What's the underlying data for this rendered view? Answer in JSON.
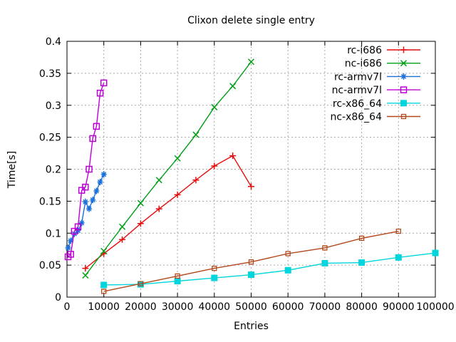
{
  "chart_data": {
    "type": "line",
    "title": "Clixon delete single entry",
    "xlabel": "Entries",
    "ylabel": "Time[s]",
    "xlim": [
      0,
      100000
    ],
    "ylim": [
      0,
      0.4
    ],
    "x_ticks": [
      0,
      10000,
      20000,
      30000,
      40000,
      50000,
      60000,
      70000,
      80000,
      90000,
      100000
    ],
    "x_tick_labels": [
      "0",
      "10000",
      "20000",
      "30000",
      "40000",
      "50000",
      "60000",
      "70000",
      "80000",
      "90000",
      "100000"
    ],
    "y_ticks": [
      0,
      0.05,
      0.1,
      0.15,
      0.2,
      0.25,
      0.3,
      0.35,
      0.4
    ],
    "y_tick_labels": [
      "0",
      "0.05",
      "0.1",
      "0.15",
      "0.2",
      "0.25",
      "0.3",
      "0.35",
      "0.4"
    ],
    "grid": true,
    "legend_position": "top-right-inside",
    "colors": {
      "background": "#ffffff",
      "axis": "#000000",
      "grid": "#a8a8a8",
      "text": "#000000"
    },
    "series": [
      {
        "name": "rc-i686",
        "color": "#e40d0d",
        "marker": "plus",
        "x": [
          5000,
          10000,
          15000,
          20000,
          25000,
          30000,
          35000,
          40000,
          45000,
          50000
        ],
        "y": [
          0.045,
          0.068,
          0.09,
          0.115,
          0.138,
          0.16,
          0.183,
          0.205,
          0.221,
          0.173
        ]
      },
      {
        "name": "nc-i686",
        "color": "#00a017",
        "marker": "cross",
        "x": [
          5000,
          10000,
          15000,
          20000,
          25000,
          30000,
          35000,
          40000,
          45000,
          50000
        ],
        "y": [
          0.034,
          0.072,
          0.11,
          0.147,
          0.183,
          0.217,
          0.254,
          0.297,
          0.33,
          0.368
        ]
      },
      {
        "name": "rc-armv7l",
        "color": "#1a6fdb",
        "marker": "asterisk",
        "x": [
          300,
          1000,
          2000,
          3000,
          4000,
          5000,
          6000,
          7000,
          8000,
          9000,
          10000
        ],
        "y": [
          0.077,
          0.088,
          0.099,
          0.104,
          0.116,
          0.149,
          0.138,
          0.152,
          0.166,
          0.18,
          0.192
        ]
      },
      {
        "name": "nc-armv7l",
        "color": "#bd00d8",
        "marker": "square-open",
        "x": [
          300,
          1000,
          2000,
          3000,
          4000,
          5000,
          6000,
          7000,
          8000,
          9000,
          10000
        ],
        "y": [
          0.063,
          0.067,
          0.103,
          0.11,
          0.167,
          0.172,
          0.2,
          0.248,
          0.267,
          0.319,
          0.335
        ]
      },
      {
        "name": "rc-x86_64",
        "color": "#00d5dd",
        "marker": "square-filled",
        "x": [
          10000,
          20000,
          30000,
          40000,
          50000,
          60000,
          70000,
          80000,
          90000,
          100000
        ],
        "y": [
          0.019,
          0.02,
          0.025,
          0.03,
          0.035,
          0.042,
          0.053,
          0.054,
          0.062,
          0.069
        ]
      },
      {
        "name": "nc-x86_64",
        "color": "#b2491c",
        "marker": "square-open-small",
        "x": [
          10000,
          20000,
          30000,
          40000,
          50000,
          60000,
          70000,
          80000,
          90000
        ],
        "y": [
          0.009,
          0.021,
          0.033,
          0.045,
          0.055,
          0.068,
          0.077,
          0.092,
          0.103
        ]
      }
    ]
  }
}
